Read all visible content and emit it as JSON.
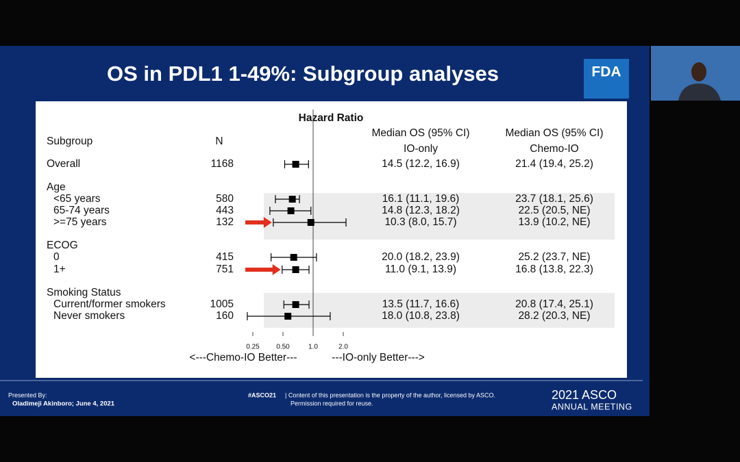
{
  "slide": {
    "title": "OS in PDL1 1-49%: Subgroup analyses",
    "logo": "FDA"
  },
  "chart_data": {
    "type": "forest",
    "title": "Hazard Ratio",
    "columns": {
      "subgroup": "Subgroup",
      "n": "N",
      "io_only": [
        "Median OS (95% CI)",
        "IO-only"
      ],
      "chemo_io": [
        "Median OS (95% CI)",
        "Chemo-IO"
      ]
    },
    "rows": [
      {
        "label": "Overall",
        "n": 1168,
        "io_only": "14.5 (12.2, 16.9)",
        "chemo_io": "21.4 (19.4, 25.2)",
        "hr": 0.67,
        "ci": [
          0.52,
          0.9
        ]
      },
      {
        "label": "Age"
      },
      {
        "label": "<65 years",
        "n": 580,
        "io_only": "16.1 (11.1, 19.6)",
        "chemo_io": "23.7 (18.1, 25.6)",
        "hr": 0.62,
        "ci": [
          0.42,
          0.73
        ]
      },
      {
        "label": "65-74 years",
        "n": 443,
        "io_only": "14.8 (12.3, 18.2)",
        "chemo_io": "22.5 (20.5, NE)",
        "hr": 0.6,
        "ci": [
          0.37,
          0.95
        ]
      },
      {
        "label": ">=75 years",
        "n": 132,
        "io_only": "10.3 (8.0, 15.7)",
        "chemo_io": "13.9 (10.2, NE)",
        "hr": 0.95,
        "ci": [
          0.4,
          2.13
        ],
        "highlight": true
      },
      {
        "label": "ECOG"
      },
      {
        "label": "0",
        "n": 415,
        "io_only": "20.0 (18.2, 23.9)",
        "chemo_io": "25.2 (23.7, NE)",
        "hr": 0.64,
        "ci": [
          0.38,
          1.08
        ]
      },
      {
        "label": "1+",
        "n": 751,
        "io_only": "11.0 (9.1, 13.9)",
        "chemo_io": "16.8 (13.8, 22.3)",
        "hr": 0.67,
        "ci": [
          0.49,
          0.91
        ],
        "highlight": true
      },
      {
        "label": "Smoking Status"
      },
      {
        "label": "Current/former smokers",
        "n": 1005,
        "io_only": "13.5 (11.7, 16.6)",
        "chemo_io": "20.8 (17.4, 25.1)",
        "hr": 0.67,
        "ci": [
          0.51,
          0.91
        ]
      },
      {
        "label": "Never smokers",
        "n": 160,
        "io_only": "18.0 (10.8, 23.8)",
        "chemo_io": "28.2 (20.3, NE)",
        "hr": 0.56,
        "ci": [
          0.22,
          1.48
        ]
      }
    ],
    "log_scale": true,
    "xlim": [
      0.25,
      2
    ],
    "xticks": [
      0.25,
      {
        "value": 0.5,
        "label": "0.50"
      },
      {
        "value": 1,
        "label": "1.0"
      },
      {
        "value": 2,
        "label": "2.0"
      }
    ],
    "reference": 1,
    "xlabel_left": "<---Chemo-IO Better---",
    "xlabel_right": "---IO-only Better--->",
    "marker_color": "#000000",
    "highlight_color": "#e0301e"
  },
  "footer": {
    "presented_by": "Presented By:",
    "presenter": "Oladimeji Akinboro; June 4, 2021",
    "hashtag": "#ASCO21",
    "notice": "| Content of this presentation is the property of the author, licensed by ASCO.",
    "notice2": "Permission required for reuse.",
    "brand": "2021 ASCO",
    "brand2": "ANNUAL MEETING"
  }
}
